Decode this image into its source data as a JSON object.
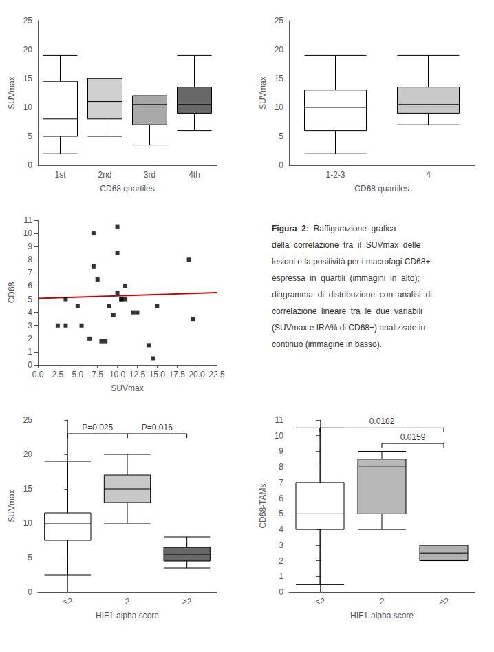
{
  "chart_data": [
    {
      "type": "boxplot",
      "categories": [
        "1st",
        "2nd",
        "3rd",
        "4th"
      ],
      "values": [
        [
          2,
          5,
          8,
          14.5,
          19
        ],
        [
          5,
          8,
          11,
          15,
          15
        ],
        [
          3.5,
          7,
          10.5,
          12,
          12
        ],
        [
          6,
          9,
          10.5,
          13.5,
          19
        ]
      ],
      "colors": [
        "#ffffff",
        "#d0d0d0",
        "#a8a8a8",
        "#686868"
      ],
      "ylim": [
        0,
        25
      ],
      "yticks": [
        0,
        5,
        10,
        15,
        20,
        25
      ],
      "xlabel": "CD68 quartiles",
      "ylabel": "SUVmax",
      "grid": false
    },
    {
      "type": "boxplot",
      "categories": [
        "1-2-3",
        "4"
      ],
      "values": [
        [
          2,
          6,
          10,
          13,
          19
        ],
        [
          7,
          9,
          10.5,
          13.5,
          19
        ]
      ],
      "colors": [
        "#ffffff",
        "#c8c8c8"
      ],
      "ylim": [
        0,
        25
      ],
      "yticks": [
        0,
        5,
        10,
        15,
        20,
        25
      ],
      "xlabel": "CD68 quartiles",
      "ylabel": "SUVmax",
      "grid": false
    },
    {
      "type": "scatter",
      "xlabel": "SUVmax",
      "ylabel": "CD68",
      "xlim": [
        0,
        22.5
      ],
      "ylim": [
        0,
        11
      ],
      "xticks": [
        {
          "value": 0,
          "label": "0.0"
        },
        2.5,
        {
          "value": 5,
          "label": "5.0"
        },
        7.5,
        {
          "value": 10,
          "label": "10.0"
        },
        12.5,
        {
          "value": 15,
          "label": "15.0"
        },
        17.5,
        {
          "value": 20,
          "label": "20.0"
        },
        22.5
      ],
      "yticks": [
        0,
        1,
        2,
        3,
        4,
        5,
        6,
        7,
        8,
        9,
        10,
        11
      ],
      "grid": false,
      "series": [
        {
          "type": "scatter",
          "color": "#000000",
          "marker": "square",
          "x": [
            2.5,
            3.5,
            3.5,
            5.0,
            5.5,
            6.5,
            7.0,
            7.0,
            7.5,
            8.0,
            8.5,
            9.0,
            9.5,
            10.0,
            10.0,
            10.0,
            10.5,
            10.5,
            11.0,
            11.0,
            12.0,
            12.5,
            14.0,
            14.5,
            15.0,
            19.0,
            19.5
          ],
          "values": [
            3.0,
            3.0,
            5.0,
            4.5,
            3.0,
            2.0,
            10.0,
            7.5,
            6.5,
            1.8,
            1.8,
            4.5,
            3.8,
            10.5,
            8.5,
            5.5,
            5.0,
            5.0,
            6.0,
            5.0,
            4.0,
            4.0,
            1.5,
            0.5,
            4.5,
            8.0,
            3.5
          ]
        },
        {
          "type": "line",
          "color": "#cc0000",
          "x": [
            0,
            22.5
          ],
          "values": [
            5.05,
            5.5
          ]
        }
      ]
    },
    {
      "type": "text",
      "annotations": [
        "Figura  2:",
        "  Raffigurazione  grafica",
        "della  correlazione  tra  il  SUVmax  delle",
        "lesioni e la positività per i macrofagi CD68+",
        "espressa  in  quartili  (immagini  in  alto);",
        "diagramma  di  distribuzione  con  analisi  di",
        "correlazione  lineare  tra  le  due  variabili",
        "(SUVmax e IRA% di CD68+) analizzate in",
        "continuo (immagine in basso)."
      ]
    },
    {
      "type": "boxplot",
      "categories": [
        "<2",
        "2",
        ">2"
      ],
      "values": [
        [
          2.5,
          7.5,
          10,
          11.5,
          19
        ],
        [
          10,
          13,
          15,
          17,
          20
        ],
        [
          3.5,
          4.5,
          5.5,
          6.5,
          8
        ]
      ],
      "colors": [
        "#ffffff",
        "#c8c8c8",
        "#686868"
      ],
      "ylim": [
        0,
        25
      ],
      "yticks": [
        0,
        5,
        10,
        15,
        20,
        25
      ],
      "xlabel": "HIF1-alpha score",
      "ylabel": "SUVmax",
      "grid": false,
      "annotations": [
        {
          "text": "P=0.025",
          "from": "<2",
          "to": "2",
          "y": 23.0
        },
        {
          "text": "P=0.016",
          "from": "2",
          "to": ">2",
          "y": 23.0
        }
      ]
    },
    {
      "type": "boxplot",
      "categories": [
        "<2",
        "2",
        ">2"
      ],
      "values": [
        [
          0.5,
          4,
          5,
          7,
          10.5
        ],
        [
          4,
          5,
          8,
          8.5,
          9
        ],
        [
          2,
          2,
          2.5,
          3,
          3
        ]
      ],
      "colors": [
        "#ffffff",
        "#b8b8b8",
        "#b0b0b0"
      ],
      "ylim": [
        0,
        11
      ],
      "yticks": [
        0,
        1,
        2,
        3,
        4,
        5,
        6,
        7,
        8,
        9,
        10,
        11
      ],
      "xlabel": "HIF1-alpha score",
      "ylabel": "CD68-TAMs",
      "grid": false,
      "annotations": [
        {
          "text": "0.0182",
          "from": "<2",
          "to": ">2",
          "y": 10.5
        },
        {
          "text": "0.0159",
          "from": "2",
          "to": ">2",
          "y": 9.5
        }
      ]
    }
  ]
}
